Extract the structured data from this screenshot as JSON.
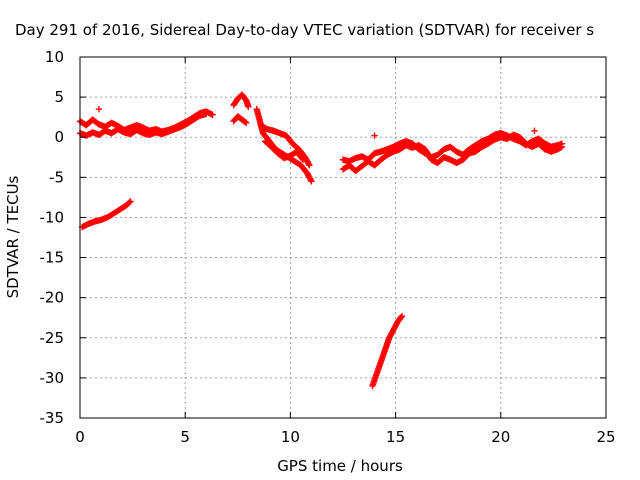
{
  "chart_data": {
    "type": "scatter",
    "title": "Day 291 of 2016, Sidereal Day-to-day VTEC variation (SDTVAR) for receiver s",
    "xlabel": "GPS time / hours",
    "ylabel": "SDTVAR / TECUs",
    "xlim": [
      0,
      25
    ],
    "ylim": [
      -35,
      10
    ],
    "xticks": [
      0,
      5,
      10,
      15,
      20,
      25
    ],
    "yticks": [
      -35,
      -30,
      -25,
      -20,
      -15,
      -10,
      -5,
      0,
      5,
      10
    ],
    "grid": true,
    "marker": "+",
    "color": "#ff0000",
    "segments": [
      {
        "x": [
          0.0,
          0.3,
          0.6,
          0.9,
          1.2,
          1.5,
          1.8,
          2.1,
          2.4,
          2.7,
          3.0,
          3.3,
          3.6,
          3.9,
          4.2,
          4.5,
          4.8,
          5.1,
          5.4,
          5.7,
          6.0,
          6.3
        ],
        "y": [
          2.0,
          1.5,
          2.2,
          1.6,
          1.3,
          1.8,
          1.4,
          0.9,
          1.2,
          1.5,
          1.2,
          0.8,
          1.0,
          0.7,
          0.9,
          1.2,
          1.6,
          2.0,
          2.5,
          3.0,
          3.2,
          2.8
        ]
      },
      {
        "x": [
          0.0,
          0.3,
          0.6,
          0.9,
          1.2,
          1.5,
          1.8,
          2.1,
          2.4,
          2.7,
          3.0,
          3.3,
          3.6,
          3.9,
          4.2,
          4.5,
          4.8,
          5.1,
          5.4,
          5.7,
          6.0
        ],
        "y": [
          0.5,
          0.2,
          0.6,
          0.3,
          0.8,
          0.5,
          1.0,
          0.6,
          0.4,
          0.9,
          0.5,
          0.3,
          0.6,
          0.4,
          0.7,
          1.0,
          1.3,
          1.7,
          2.2,
          2.7,
          2.9
        ]
      },
      {
        "x": [
          0.1,
          0.4,
          0.7,
          1.0,
          1.3,
          1.6,
          1.9,
          2.2,
          2.4
        ],
        "y": [
          -11.2,
          -10.8,
          -10.5,
          -10.3,
          -10.0,
          -9.5,
          -9.0,
          -8.5,
          -8.0
        ]
      },
      {
        "x": [
          7.3,
          7.5,
          7.7,
          7.9,
          8.0
        ],
        "y": [
          4.0,
          4.8,
          5.3,
          4.6,
          3.8
        ]
      },
      {
        "x": [
          7.3,
          7.5,
          7.7,
          7.9
        ],
        "y": [
          2.0,
          2.6,
          2.2,
          1.8
        ]
      },
      {
        "x": [
          8.4,
          8.7,
          9.0,
          9.3,
          9.6,
          9.9,
          10.2,
          10.5,
          10.8,
          11.0
        ],
        "y": [
          3.5,
          0.5,
          -0.5,
          -1.5,
          -2.0,
          -2.5,
          -3.0,
          -3.5,
          -4.5,
          -5.5
        ]
      },
      {
        "x": [
          8.6,
          8.9,
          9.2,
          9.5,
          9.8,
          10.1,
          10.4,
          10.7,
          10.9
        ],
        "y": [
          1.5,
          1.0,
          0.8,
          0.5,
          0.2,
          -0.8,
          -1.5,
          -2.5,
          -3.5
        ]
      },
      {
        "x": [
          8.8,
          9.1,
          9.4,
          9.7,
          10.0,
          10.3,
          10.6
        ],
        "y": [
          -0.5,
          -1.2,
          -2.0,
          -2.6,
          -2.3,
          -1.8,
          -2.8
        ]
      },
      {
        "x": [
          12.5,
          12.8,
          13.1,
          13.4,
          13.7,
          14.0,
          14.3,
          14.6,
          14.9,
          15.2,
          15.5,
          15.8,
          16.1,
          16.4,
          16.7,
          17.0,
          17.3,
          17.6,
          17.9,
          18.2,
          18.5,
          18.8,
          19.1,
          19.4,
          19.7,
          20.0,
          20.3,
          20.6,
          20.9,
          21.2,
          21.5,
          21.8,
          22.1,
          22.4,
          22.7,
          22.9
        ],
        "y": [
          -4.0,
          -3.5,
          -4.2,
          -3.6,
          -3.0,
          -3.5,
          -2.8,
          -2.2,
          -1.8,
          -1.5,
          -1.0,
          -1.3,
          -1.0,
          -1.5,
          -2.8,
          -3.2,
          -2.5,
          -2.8,
          -3.2,
          -2.8,
          -2.0,
          -1.8,
          -1.2,
          -0.8,
          -0.3,
          0.0,
          -0.2,
          0.3,
          0.0,
          -0.8,
          -1.2,
          -0.8,
          -1.5,
          -1.8,
          -1.5,
          -1.2
        ]
      },
      {
        "x": [
          12.5,
          12.8,
          13.1,
          13.4,
          13.7,
          14.0,
          14.3,
          14.6,
          14.9,
          15.2,
          15.5,
          15.8,
          16.1,
          16.4,
          16.7,
          17.0,
          17.3,
          17.6,
          17.9,
          18.2,
          18.5,
          18.8,
          19.1,
          19.4,
          19.7,
          20.0,
          20.3,
          20.6,
          20.9,
          21.2,
          21.5,
          21.8,
          22.1,
          22.4,
          22.7,
          22.9
        ],
        "y": [
          -2.8,
          -3.0,
          -2.6,
          -2.4,
          -2.8,
          -2.0,
          -1.8,
          -1.5,
          -1.2,
          -0.8,
          -0.5,
          -0.8,
          -1.5,
          -2.0,
          -2.5,
          -2.2,
          -1.5,
          -1.2,
          -1.8,
          -2.2,
          -1.5,
          -1.0,
          -0.5,
          -0.2,
          0.3,
          0.5,
          0.2,
          -0.2,
          -0.5,
          -1.0,
          -0.5,
          -0.2,
          -0.8,
          -1.2,
          -1.0,
          -0.8
        ]
      },
      {
        "x": [
          13.9,
          14.1,
          14.3,
          14.5,
          14.7,
          14.9,
          15.1,
          15.3
        ],
        "y": [
          -31.0,
          -29.5,
          -28.0,
          -26.5,
          -25.0,
          -24.0,
          -23.0,
          -22.3
        ]
      }
    ],
    "isolated_points": [
      {
        "x": 0.9,
        "y": 3.5
      },
      {
        "x": 14.0,
        "y": 0.2
      },
      {
        "x": 21.6,
        "y": 0.8
      }
    ]
  }
}
